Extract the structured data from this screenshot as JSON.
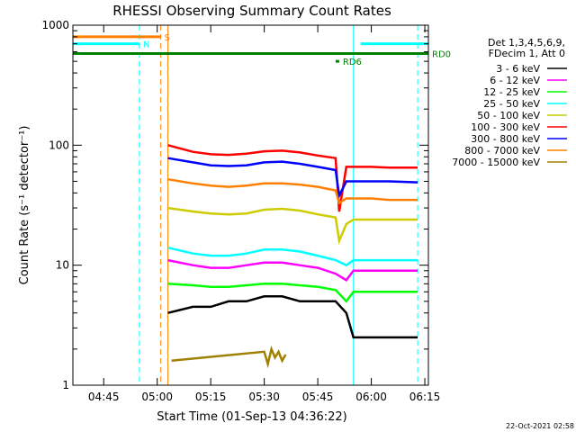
{
  "chart_data": {
    "type": "line",
    "title": "RHESSI Observing Summary Count Rates",
    "xlabel": "Start Time (01-Sep-13 04:36:22)",
    "ylabel": "Count Rate (s⁻¹ detector⁻¹)",
    "yscale": "log",
    "ylim": [
      1,
      1000
    ],
    "xlim": [
      "04:36:22",
      "06:16"
    ],
    "x_ticks": [
      "04:45",
      "05:00",
      "05:15",
      "05:30",
      "05:45",
      "06:00",
      "06:15"
    ],
    "y_ticks": [
      "1",
      "10",
      "100",
      "1000"
    ],
    "legend_header": [
      "Det 1,3,4,5,6,9,",
      "FDecim 1, Att 0"
    ],
    "legend_position": "right",
    "footer": "22-Oct-2021 02:58",
    "series": [
      {
        "name": "3 - 6 keV",
        "color": "#000000",
        "x": [
          "05:03",
          "05:10",
          "05:15",
          "05:20",
          "05:25",
          "05:30",
          "05:35",
          "05:40",
          "05:45",
          "05:50",
          "05:53",
          "05:55",
          "06:00",
          "06:05",
          "06:13"
        ],
        "y": [
          4,
          4.5,
          4.5,
          5,
          5,
          5.5,
          5.5,
          5,
          5,
          5,
          4,
          2.5,
          2.5,
          2.5,
          2.5
        ]
      },
      {
        "name": "6 - 12 keV",
        "color": "#ff00ff",
        "x": [
          "05:03",
          "05:10",
          "05:15",
          "05:20",
          "05:25",
          "05:30",
          "05:35",
          "05:40",
          "05:45",
          "05:50",
          "05:53",
          "05:55",
          "06:00",
          "06:05",
          "06:13"
        ],
        "y": [
          11,
          10,
          9.5,
          9.5,
          10,
          10.5,
          10.5,
          10,
          9.5,
          8.5,
          7.5,
          9,
          9,
          9,
          9
        ]
      },
      {
        "name": "12 - 25 keV",
        "color": "#00ff00",
        "x": [
          "05:03",
          "05:10",
          "05:15",
          "05:20",
          "05:25",
          "05:30",
          "05:35",
          "05:40",
          "05:45",
          "05:50",
          "05:53",
          "05:55",
          "06:00",
          "06:05",
          "06:13"
        ],
        "y": [
          7,
          6.8,
          6.6,
          6.6,
          6.8,
          7,
          7,
          6.8,
          6.6,
          6.2,
          5,
          6,
          6,
          6,
          6
        ]
      },
      {
        "name": "25 - 50 keV",
        "color": "#00ffff",
        "x": [
          "05:03",
          "05:10",
          "05:15",
          "05:20",
          "05:25",
          "05:30",
          "05:35",
          "05:40",
          "05:45",
          "05:50",
          "05:53",
          "05:55",
          "06:00",
          "06:05",
          "06:13"
        ],
        "y": [
          14,
          12.5,
          12,
          12,
          12.5,
          13.5,
          13.5,
          13,
          12,
          11,
          10,
          11,
          11,
          11,
          11
        ]
      },
      {
        "name": "50 - 100 keV",
        "color": "#cccc00",
        "x": [
          "05:03",
          "05:10",
          "05:15",
          "05:20",
          "05:25",
          "05:30",
          "05:35",
          "05:40",
          "05:45",
          "05:50",
          "05:51",
          "05:53",
          "05:55",
          "06:00",
          "06:05",
          "06:13"
        ],
        "y": [
          30,
          28,
          27,
          26.5,
          27,
          29,
          29.5,
          28.5,
          26.5,
          25,
          16,
          22,
          24,
          24,
          24,
          24
        ]
      },
      {
        "name": "100 - 300 keV",
        "color": "#ff0000",
        "x": [
          "05:03",
          "05:10",
          "05:15",
          "05:20",
          "05:25",
          "05:30",
          "05:35",
          "05:40",
          "05:45",
          "05:50",
          "05:51",
          "05:53",
          "05:55",
          "06:00",
          "06:05",
          "06:13"
        ],
        "y": [
          100,
          88,
          84,
          83,
          85,
          89,
          90,
          87,
          82,
          78,
          28,
          66,
          66,
          66,
          65,
          65
        ]
      },
      {
        "name": "300 - 800 keV",
        "color": "#0000ff",
        "x": [
          "05:03",
          "05:10",
          "05:15",
          "05:20",
          "05:25",
          "05:30",
          "05:35",
          "05:40",
          "05:45",
          "05:50",
          "05:51",
          "05:53",
          "05:55",
          "06:00",
          "06:05",
          "06:13"
        ],
        "y": [
          78,
          72,
          68,
          67,
          68,
          72,
          73,
          70,
          66,
          62,
          38,
          50,
          50,
          50,
          50,
          49
        ]
      },
      {
        "name": "800 - 7000 keV",
        "color": "#ff8000",
        "x": [
          "05:03",
          "05:10",
          "05:15",
          "05:20",
          "05:25",
          "05:30",
          "05:35",
          "05:40",
          "05:45",
          "05:50",
          "05:51",
          "05:53",
          "05:55",
          "06:00",
          "06:05",
          "06:13"
        ],
        "y": [
          52,
          48,
          46,
          45,
          46,
          48,
          48,
          47,
          45,
          42,
          33,
          36,
          36,
          36,
          35,
          35
        ]
      },
      {
        "name": "7000 - 15000 keV",
        "color": "#a08000",
        "x": [
          "05:04",
          "05:30",
          "05:31",
          "05:32",
          "05:33",
          "05:34",
          "05:35",
          "05:36"
        ],
        "y": [
          1.6,
          1.9,
          1.5,
          2.0,
          1.7,
          1.9,
          1.6,
          1.8
        ]
      }
    ],
    "markers": {
      "attenuator_bars": [
        {
          "label": "S",
          "color": "#ff8000",
          "x_start": "04:36:22",
          "x_end": "05:01",
          "y": 800
        },
        {
          "label": "N",
          "color": "#00ffff",
          "x_start": "04:36:22",
          "x_end": "04:55",
          "y": 700
        },
        {
          "label": "",
          "color": "#00ffff",
          "x_start": "05:57",
          "x_end": "06:16",
          "y": 700
        },
        {
          "label": "RD0",
          "color": "#008000",
          "x_start": "04:36:22",
          "x_end": "06:16",
          "y": 580
        },
        {
          "label": "RD6",
          "color": "#008000",
          "x_start": "05:50",
          "x_end": "05:51",
          "y": 500
        }
      ],
      "vertical_lines": [
        {
          "x": "04:55",
          "color": "#00ffff",
          "style": "dashed"
        },
        {
          "x": "05:01",
          "color": "#ff8000",
          "style": "dashed"
        },
        {
          "x": "05:03",
          "color": "#ff8000",
          "style": "solid"
        },
        {
          "x": "05:55",
          "color": "#00ffff",
          "style": "solid"
        },
        {
          "x": "06:13",
          "color": "#00ffff",
          "style": "dashed"
        }
      ]
    }
  }
}
